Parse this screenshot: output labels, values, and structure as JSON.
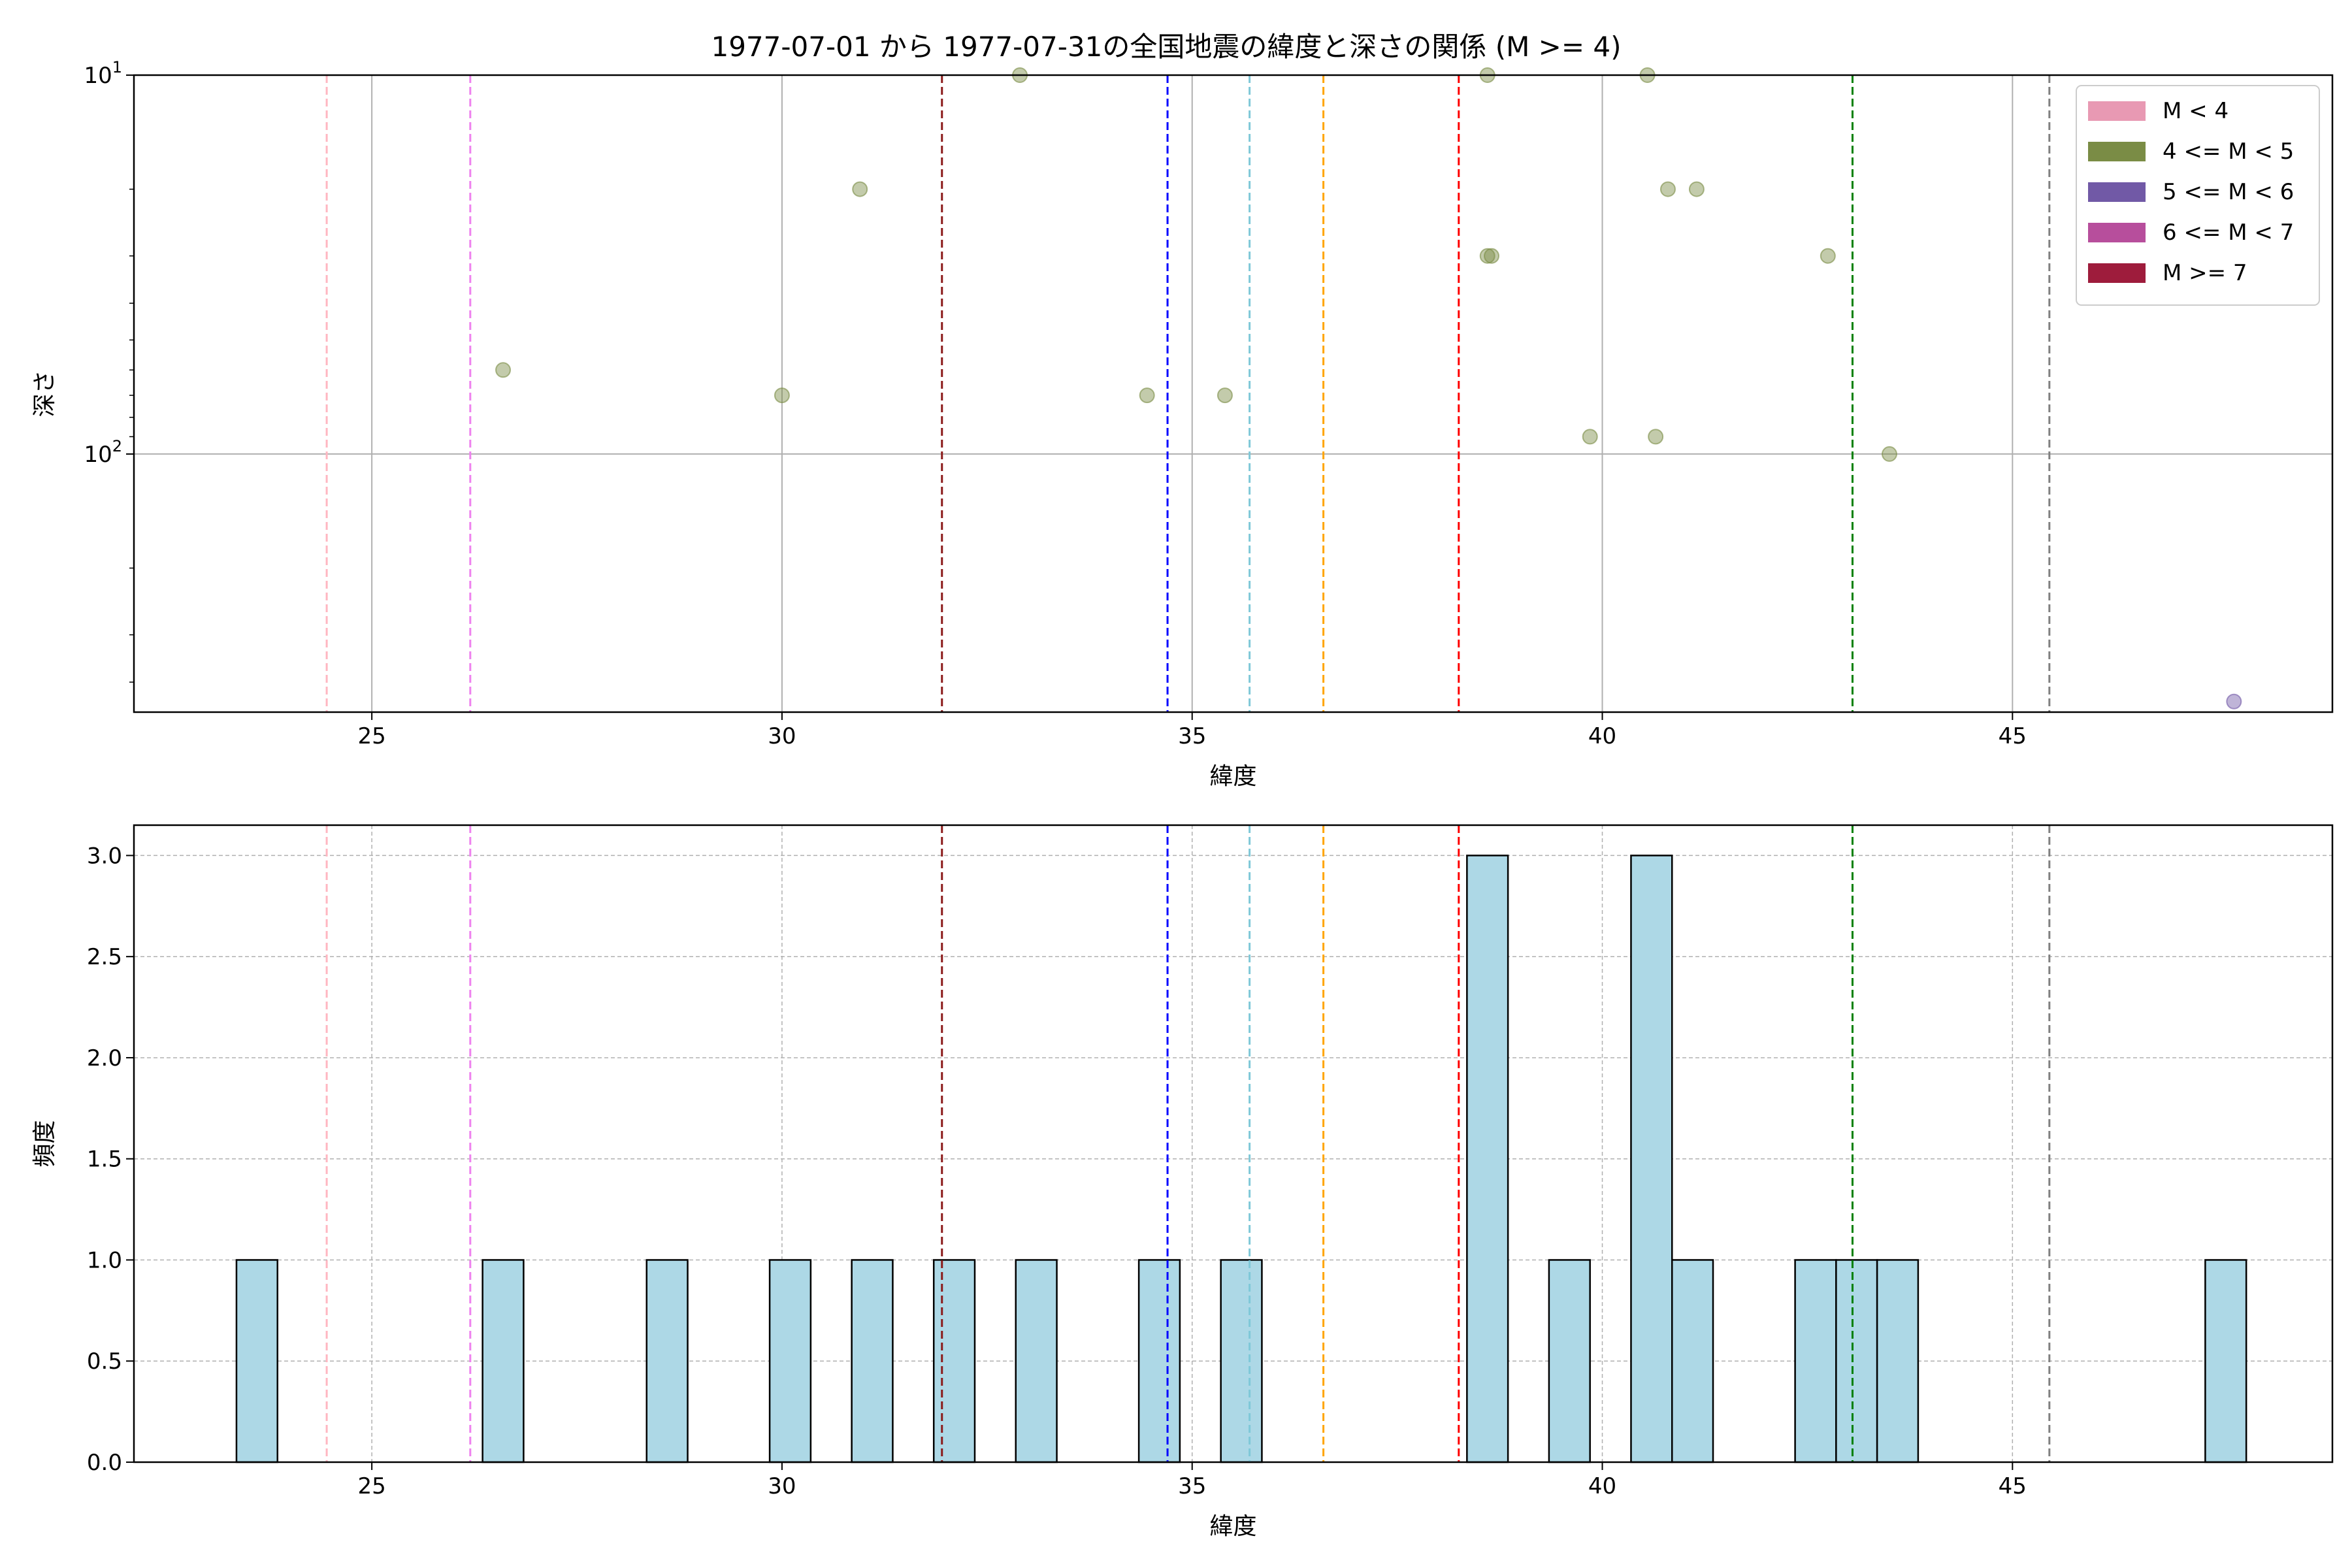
{
  "chart_data": [
    {
      "type": "scatter",
      "title": "1977-07-01 から 1977-07-31の全国地震の緯度と深さの関係 (M >= 4)",
      "xlabel": "緯度",
      "ylabel": "深さ",
      "xlim": [
        22.1,
        48.9
      ],
      "ylim": [
        10,
        480
      ],
      "y_scale": "log",
      "y_inverted": true,
      "grid": true,
      "legend_position": "top-right",
      "x_ticks": [
        25,
        30,
        35,
        40,
        45
      ],
      "y_ticks": [
        {
          "value": 10,
          "base": "10",
          "exp": "1"
        },
        {
          "value": 100,
          "base": "10",
          "exp": "2"
        }
      ],
      "legend": [
        {
          "label": "M < 4",
          "color": "#e899b3"
        },
        {
          "label": "4 <= M < 5",
          "color": "#7a8c45"
        },
        {
          "label": "5 <= M < 6",
          "color": "#7159a6"
        },
        {
          "label": "6 <= M < 7",
          "color": "#b74e9c"
        },
        {
          "label": "M >= 7",
          "color": "#9e1c3c"
        }
      ],
      "vertical_lines": [
        {
          "x": 24.45,
          "color": "#ffb6c1"
        },
        {
          "x": 26.2,
          "color": "#ee82ee"
        },
        {
          "x": 31.95,
          "color": "#8b1a1a"
        },
        {
          "x": 34.7,
          "color": "#0000ff"
        },
        {
          "x": 35.7,
          "color": "#7ec8d8"
        },
        {
          "x": 36.6,
          "color": "#ffa500"
        },
        {
          "x": 38.25,
          "color": "#ff0000"
        },
        {
          "x": 43.05,
          "color": "#008000"
        },
        {
          "x": 45.45,
          "color": "#808080"
        }
      ],
      "points": [
        {
          "x": 26.6,
          "y": 60,
          "color": "#7a8c45"
        },
        {
          "x": 30.0,
          "y": 70,
          "color": "#7a8c45"
        },
        {
          "x": 30.95,
          "y": 20,
          "color": "#7a8c45"
        },
        {
          "x": 32.9,
          "y": 10,
          "color": "#7a8c45"
        },
        {
          "x": 34.45,
          "y": 70,
          "color": "#7a8c45"
        },
        {
          "x": 35.4,
          "y": 70,
          "color": "#7a8c45"
        },
        {
          "x": 38.6,
          "y": 10,
          "color": "#7a8c45"
        },
        {
          "x": 38.6,
          "y": 30,
          "color": "#7a8c45"
        },
        {
          "x": 38.65,
          "y": 30,
          "color": "#7a8c45"
        },
        {
          "x": 39.85,
          "y": 90,
          "color": "#7a8c45"
        },
        {
          "x": 40.55,
          "y": 10,
          "color": "#7a8c45"
        },
        {
          "x": 40.65,
          "y": 90,
          "color": "#7a8c45"
        },
        {
          "x": 40.8,
          "y": 20,
          "color": "#7a8c45"
        },
        {
          "x": 41.15,
          "y": 20,
          "color": "#7a8c45"
        },
        {
          "x": 42.75,
          "y": 30,
          "color": "#7a8c45"
        },
        {
          "x": 43.5,
          "y": 100,
          "color": "#7a8c45"
        },
        {
          "x": 47.7,
          "y": 450,
          "color": "#7159a6"
        }
      ]
    },
    {
      "type": "bar",
      "xlabel": "緯度",
      "ylabel": "頻度",
      "xlim": [
        22.1,
        48.9
      ],
      "ylim": [
        0,
        3.15
      ],
      "grid": true,
      "bar_color": "#add8e6",
      "bin_width": 0.5,
      "x_ticks": [
        25,
        30,
        35,
        40,
        45
      ],
      "y_ticks": [
        "0.0",
        "0.5",
        "1.0",
        "1.5",
        "2.0",
        "2.5",
        "3.0"
      ],
      "vertical_lines": [
        {
          "x": 24.45,
          "color": "#ffb6c1"
        },
        {
          "x": 26.2,
          "color": "#ee82ee"
        },
        {
          "x": 31.95,
          "color": "#8b1a1a"
        },
        {
          "x": 34.7,
          "color": "#0000ff"
        },
        {
          "x": 35.7,
          "color": "#7ec8d8"
        },
        {
          "x": 36.6,
          "color": "#ffa500"
        },
        {
          "x": 38.25,
          "color": "#ff0000"
        },
        {
          "x": 43.05,
          "color": "#008000"
        },
        {
          "x": 45.45,
          "color": "#808080"
        }
      ],
      "bins": [
        {
          "x0": 23.35,
          "x1": 23.85,
          "count": 1
        },
        {
          "x0": 26.35,
          "x1": 26.85,
          "count": 1
        },
        {
          "x0": 28.35,
          "x1": 28.85,
          "count": 1
        },
        {
          "x0": 29.85,
          "x1": 30.35,
          "count": 1
        },
        {
          "x0": 30.85,
          "x1": 31.35,
          "count": 1
        },
        {
          "x0": 31.85,
          "x1": 32.35,
          "count": 1
        },
        {
          "x0": 32.85,
          "x1": 33.35,
          "count": 1
        },
        {
          "x0": 34.35,
          "x1": 34.85,
          "count": 1
        },
        {
          "x0": 35.35,
          "x1": 35.85,
          "count": 1
        },
        {
          "x0": 38.35,
          "x1": 38.85,
          "count": 3
        },
        {
          "x0": 39.35,
          "x1": 39.85,
          "count": 1
        },
        {
          "x0": 40.35,
          "x1": 40.85,
          "count": 3
        },
        {
          "x0": 40.85,
          "x1": 41.35,
          "count": 1
        },
        {
          "x0": 42.35,
          "x1": 42.85,
          "count": 1
        },
        {
          "x0": 42.85,
          "x1": 43.35,
          "count": 1
        },
        {
          "x0": 43.35,
          "x1": 43.85,
          "count": 1
        },
        {
          "x0": 47.35,
          "x1": 47.85,
          "count": 1
        }
      ]
    }
  ]
}
